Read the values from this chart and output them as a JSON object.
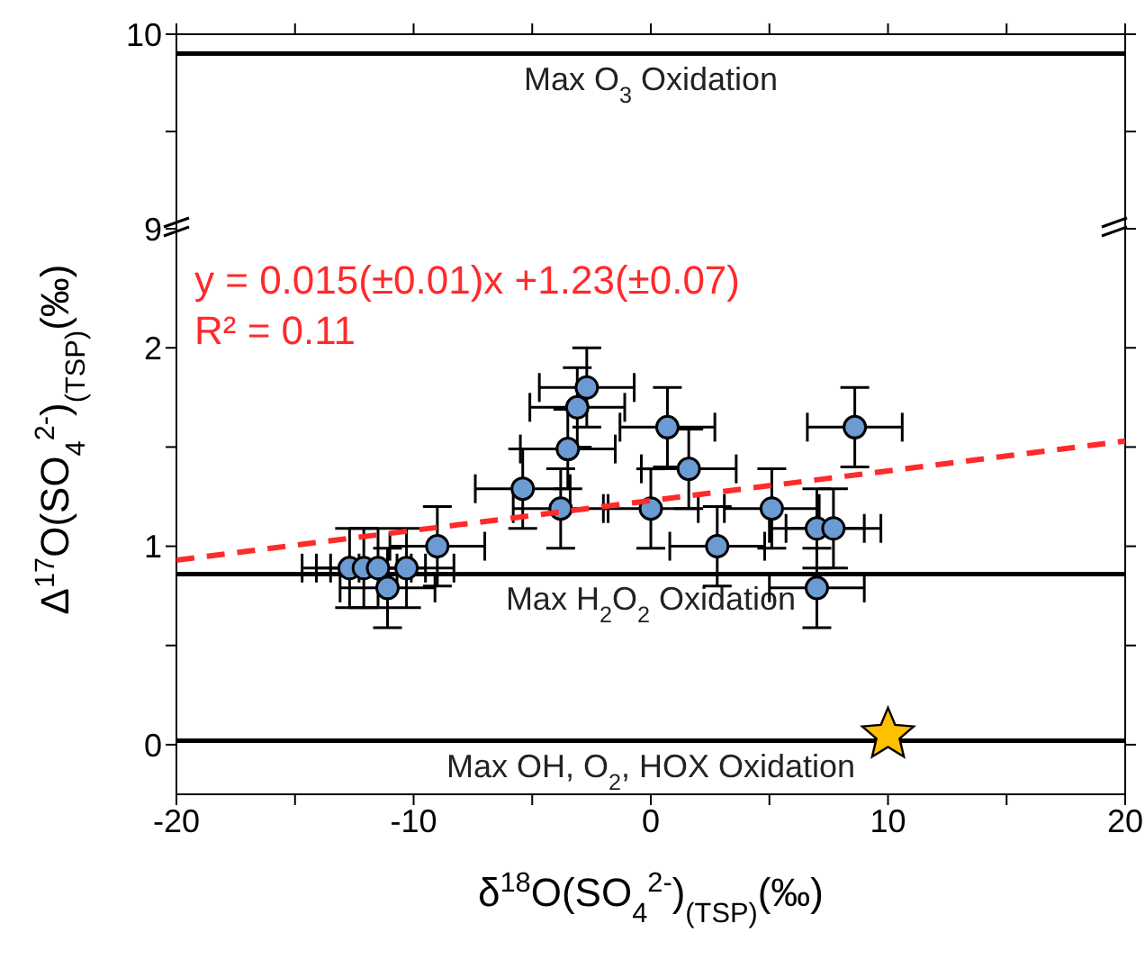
{
  "chart_data": [
    {
      "type": "scatter",
      "xlim": [
        -20,
        20
      ],
      "xticks": [
        -20,
        {
          "value": -15,
          "label": null
        },
        -10,
        {
          "value": -5,
          "label": null
        },
        0,
        {
          "value": 5,
          "label": null
        },
        10,
        {
          "value": 15,
          "label": null
        },
        20
      ],
      "ylim": [
        9,
        10
      ],
      "yticks": [
        9,
        {
          "value": 9.5,
          "label": null
        },
        10
      ],
      "tick_labels": "y",
      "ref_lines": [
        {
          "axis": "y",
          "value": 9.9,
          "label": "Max O$_{3}$ Oxidation",
          "color": "#000000"
        }
      ]
    },
    {
      "type": "scatter",
      "marker": "circle",
      "xlabel": "δ$^{18}$O(SO$_{4}$$^{2-}$)$_{(TSP)}$(‰)",
      "ylabel": "Δ$^{17}$O(SO$_{4}$$^{2-}$)$_{(TSP)}$(‰)",
      "xlim": [
        -20,
        20
      ],
      "xticks": [
        -20,
        {
          "value": -15,
          "label": null
        },
        -10,
        {
          "value": -5,
          "label": null
        },
        0,
        {
          "value": 5,
          "label": null
        },
        10,
        {
          "value": 15,
          "label": null
        },
        20
      ],
      "ylim": [
        -0.25,
        2.6
      ],
      "yticks": [
        0,
        {
          "value": 0.5,
          "label": null
        },
        1,
        {
          "value": 1.5,
          "label": null
        },
        2
      ],
      "series": [
        {
          "type": "scatter",
          "color": "#6b9bd2",
          "x": [
            -12.7,
            -12.1,
            -11.5,
            -11.1,
            -10.3,
            -9.0,
            -5.4,
            -3.8,
            -3.5,
            -3.1,
            -2.7,
            0,
            0.7,
            1.6,
            2.8,
            5.1,
            7.0,
            7.7,
            7.0,
            8.6
          ],
          "values": [
            0.89,
            0.89,
            0.89,
            0.79,
            0.89,
            1.0,
            1.29,
            1.19,
            1.49,
            1.7,
            1.8,
            1.19,
            1.6,
            1.39,
            1.0,
            1.19,
            1.09,
            1.09,
            0.79,
            1.6
          ],
          "errors": [
            0.2,
            0.2,
            0.2,
            0.2,
            0.2,
            0.2,
            0.2,
            0.2,
            0.2,
            0.2,
            0.2,
            0.2,
            0.2,
            0.2,
            0.2,
            0.2,
            0.2,
            0.2,
            0.2,
            0.2
          ],
          "xerrors": [
            2,
            2,
            2,
            2,
            2,
            2,
            2,
            2,
            2,
            2,
            2,
            2,
            2,
            2,
            2,
            2,
            2,
            2,
            2,
            2
          ]
        },
        {
          "type": "line",
          "color": "#ff2a2a",
          "x": [
            -20,
            20
          ],
          "values": [
            0.93,
            1.53
          ],
          "line_style": "dashed",
          "marker": "none"
        },
        {
          "type": "scatter",
          "color": "#ffc000",
          "x": [
            10
          ],
          "values": [
            0.05
          ],
          "marker": "star"
        }
      ],
      "ref_lines": [
        {
          "axis": "y",
          "value": 0.86,
          "label": "Max H$_{2}$O$_{2}$ Oxidation",
          "color": "#000000"
        },
        {
          "axis": "y",
          "value": 0.02,
          "label": "Max OH, O$_{2}$, HOX Oxidation",
          "color": "#000000"
        }
      ],
      "annotations": [
        "y = 0.015(±0.01)x +1.23(±0.07)",
        "R² = 0.11"
      ]
    }
  ]
}
